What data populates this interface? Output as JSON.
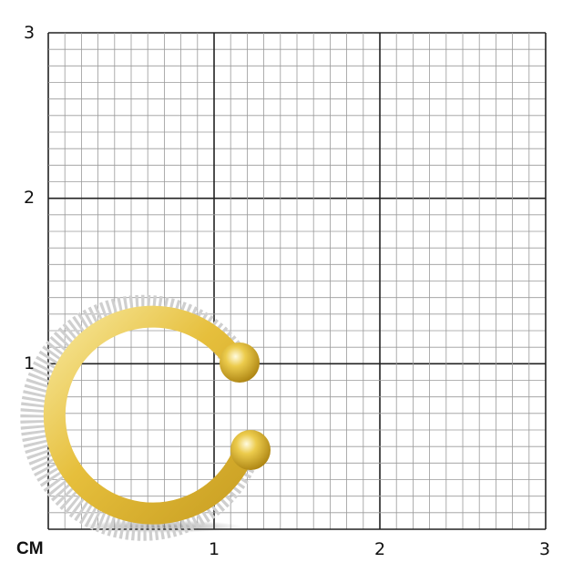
{
  "scale": {
    "unit_label": "CM",
    "x_ticks": [
      "1",
      "2",
      "3"
    ],
    "y_ticks": [
      "1",
      "2",
      "3"
    ],
    "range_cm": [
      0,
      3
    ],
    "minor_divisions_per_cm": 10
  },
  "product": {
    "name": "ear-cuff",
    "colors": {
      "gold": "#e6bf3c",
      "gold_light": "#f7e79a",
      "gold_dark": "#b8901c",
      "stones": "#d8d8d8"
    }
  },
  "colors": {
    "grid_minor": "#9a9a9a",
    "grid_major": "#222222"
  }
}
